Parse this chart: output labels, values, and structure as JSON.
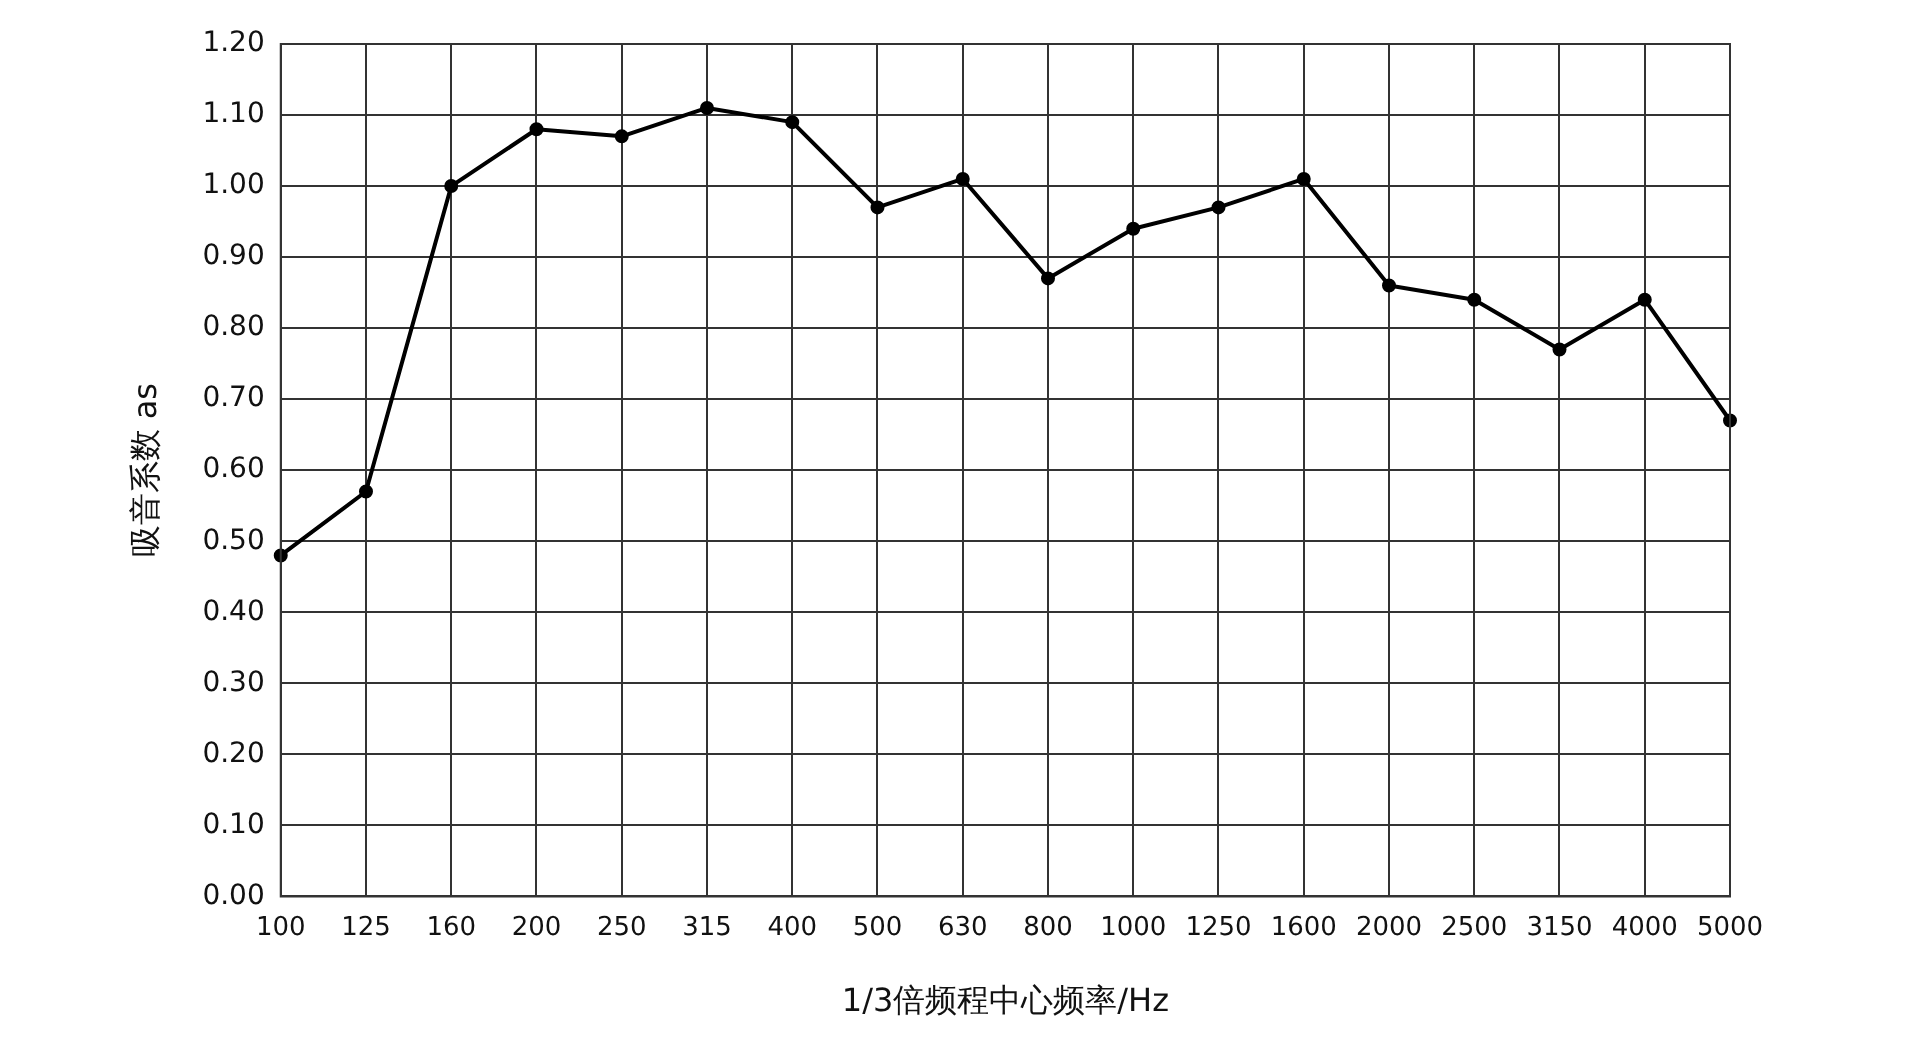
{
  "chart_data": {
    "type": "line",
    "xlabel": "1/3倍频程中心频率/Hz",
    "ylabel": "吸音系数 as",
    "categories": [
      "100",
      "125",
      "160",
      "200",
      "250",
      "315",
      "400",
      "500",
      "630",
      "800",
      "1000",
      "1250",
      "1600",
      "2000",
      "2500",
      "3150",
      "4000",
      "5000"
    ],
    "series": [
      {
        "color": "#000000",
        "values": [
          0.48,
          0.57,
          1.0,
          1.08,
          1.07,
          1.11,
          1.09,
          0.97,
          1.01,
          0.87,
          0.94,
          0.97,
          1.01,
          0.86,
          0.84,
          0.77,
          0.84,
          0.67
        ]
      }
    ],
    "ylim": [
      0,
      1.2
    ],
    "yticks": [
      {
        "value": 0,
        "label": "0.00"
      },
      {
        "value": 0.1,
        "label": "0.10"
      },
      {
        "value": 0.2,
        "label": "0.20"
      },
      {
        "value": 0.3,
        "label": "0.30"
      },
      {
        "value": 0.4,
        "label": "0.40"
      },
      {
        "value": 0.5,
        "label": "0.50"
      },
      {
        "value": 0.6,
        "label": "0.60"
      },
      {
        "value": 0.7,
        "label": "0.70"
      },
      {
        "value": 0.8,
        "label": "0.80"
      },
      {
        "value": 0.9,
        "label": "0.90"
      },
      {
        "value": 1.0,
        "label": "1.00"
      },
      {
        "value": 1.1,
        "label": "1.10"
      },
      {
        "value": 1.2,
        "label": "1.20"
      }
    ],
    "grid": true,
    "legend": false,
    "marker": "circle",
    "line_style": "solid"
  }
}
